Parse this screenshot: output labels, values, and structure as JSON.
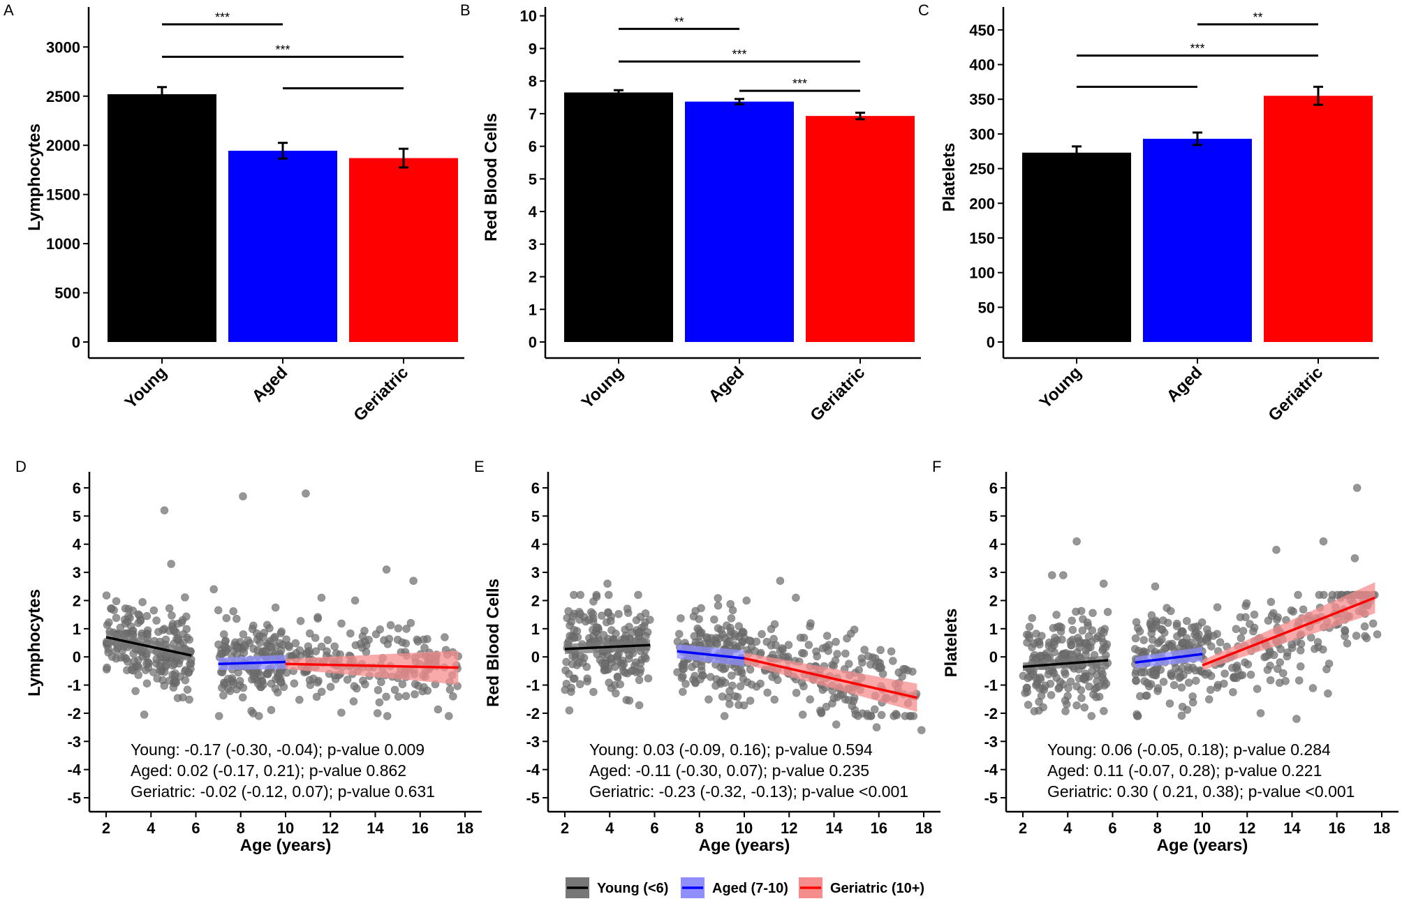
{
  "chart_data": [
    {
      "panel": "A",
      "type": "bar",
      "categories": [
        "Young",
        "Aged",
        "Geriatric"
      ],
      "values": [
        2520,
        1945,
        1870
      ],
      "errors": [
        72,
        80,
        95
      ],
      "colors": [
        "#000000",
        "#0000ff",
        "#ff0000"
      ],
      "ylabel": "Lymphocytes",
      "ylim": [
        0,
        3350
      ],
      "yticks": [
        0,
        500,
        1000,
        1500,
        2000,
        2500,
        3000
      ],
      "significance": [
        {
          "from": 0,
          "to": 1,
          "label": "***",
          "level": 3230
        },
        {
          "from": 0,
          "to": 2,
          "label": "***",
          "level": 2900
        },
        {
          "from": 1,
          "to": 2,
          "label": "",
          "level": 2580
        }
      ]
    },
    {
      "panel": "B",
      "type": "bar",
      "categories": [
        "Young",
        "Aged",
        "Geriatric"
      ],
      "values": [
        7.65,
        7.37,
        6.93
      ],
      "errors": [
        0.07,
        0.08,
        0.1
      ],
      "colors": [
        "#000000",
        "#0000ff",
        "#ff0000"
      ],
      "ylabel": "Red Blood Cells",
      "ylim": [
        0,
        10.1
      ],
      "yticks": [
        0,
        1,
        2,
        3,
        4,
        5,
        6,
        7,
        8,
        9,
        10
      ],
      "significance": [
        {
          "from": 0,
          "to": 1,
          "label": "**",
          "level": 9.6
        },
        {
          "from": 0,
          "to": 2,
          "label": "***",
          "level": 8.6
        },
        {
          "from": 1,
          "to": 2,
          "label": "***",
          "level": 7.7
        }
      ]
    },
    {
      "panel": "C",
      "type": "bar",
      "categories": [
        "Young",
        "Aged",
        "Geriatric"
      ],
      "values": [
        273,
        293,
        355
      ],
      "errors": [
        9,
        9,
        13
      ],
      "colors": [
        "#000000",
        "#0000ff",
        "#ff0000"
      ],
      "ylabel": "Platelets",
      "ylim": [
        0,
        475
      ],
      "yticks": [
        0,
        50,
        100,
        150,
        200,
        250,
        300,
        350,
        400,
        450
      ],
      "significance": [
        {
          "from": 1,
          "to": 2,
          "label": "**",
          "level": 458
        },
        {
          "from": 0,
          "to": 2,
          "label": "***",
          "level": 413
        },
        {
          "from": 0,
          "to": 1,
          "label": "",
          "level": 368
        }
      ]
    },
    {
      "panel": "D",
      "type": "scatter",
      "ylabel": "Lymphocytes",
      "xlabel": "Age (years)",
      "xlim": [
        1.9,
        18.2
      ],
      "ylim": [
        -5.4,
        6.4
      ],
      "xticks": [
        2,
        4,
        6,
        8,
        10,
        12,
        14,
        16,
        18
      ],
      "yticks": [
        -5,
        -4,
        -3,
        -2,
        -1,
        0,
        1,
        2,
        3,
        4,
        5,
        6
      ],
      "fits": [
        {
          "group": "young",
          "x": [
            2,
            5.8
          ],
          "y": [
            0.7,
            0.05
          ],
          "ci": [
            0.25,
            0.22
          ]
        },
        {
          "group": "aged",
          "x": [
            7,
            10
          ],
          "y": [
            -0.25,
            -0.18
          ],
          "ci": [
            0.22,
            0.25
          ]
        },
        {
          "group": "geriatric",
          "x": [
            10,
            17.7
          ],
          "y": [
            -0.25,
            -0.38
          ],
          "ci": [
            0.18,
            0.6
          ]
        }
      ],
      "points": {
        "young": 200,
        "aged": 160,
        "geriatric": 190,
        "trend_y": [
          0.7,
          0.05,
          -0.25,
          -0.18,
          -0.25,
          -0.38
        ],
        "spread": 0.7
      },
      "outliers": [
        [
          4.6,
          5.2
        ],
        [
          4.9,
          3.3
        ],
        [
          6.8,
          2.4
        ],
        [
          8.1,
          5.7
        ],
        [
          10.9,
          5.8
        ],
        [
          14.5,
          3.1
        ],
        [
          15.7,
          2.7
        ],
        [
          11.6,
          2.1
        ],
        [
          13.1,
          2.0
        ],
        [
          3.7,
          -2.05
        ],
        [
          14.1,
          -2.0
        ]
      ],
      "stats": [
        "Young: -0.17 (-0.30, -0.04); p-value 0.009",
        "Aged:  0.02 (-0.17,  0.21); p-value 0.862",
        "Geriatric: -0.02 (-0.12,  0.07); p-value 0.631"
      ]
    },
    {
      "panel": "E",
      "type": "scatter",
      "ylabel": "Red Blood Cells",
      "xlabel": "Age (years)",
      "xlim": [
        1.9,
        18.2
      ],
      "ylim": [
        -5.4,
        6.4
      ],
      "xticks": [
        2,
        4,
        6,
        8,
        10,
        12,
        14,
        16,
        18
      ],
      "yticks": [
        -5,
        -4,
        -3,
        -2,
        -1,
        0,
        1,
        2,
        3,
        4,
        5,
        6
      ],
      "fits": [
        {
          "group": "young",
          "x": [
            2,
            5.8
          ],
          "y": [
            0.28,
            0.42
          ],
          "ci": [
            0.18,
            0.2
          ]
        },
        {
          "group": "aged",
          "x": [
            7,
            10
          ],
          "y": [
            0.2,
            -0.05
          ],
          "ci": [
            0.25,
            0.28
          ]
        },
        {
          "group": "geriatric",
          "x": [
            10,
            17.7
          ],
          "y": [
            -0.05,
            -1.45
          ],
          "ci": [
            0.2,
            0.5
          ]
        }
      ],
      "points": {
        "young": 200,
        "aged": 160,
        "geriatric": 190,
        "trend_y": [
          0.28,
          0.42,
          0.2,
          -0.05,
          -0.05,
          -1.45
        ],
        "spread": 0.8
      },
      "outliers": [
        [
          3.9,
          2.6
        ],
        [
          11.6,
          2.7
        ],
        [
          12.3,
          2.1
        ],
        [
          10.1,
          2.0
        ],
        [
          14.1,
          -2.4
        ],
        [
          15.9,
          -2.5
        ],
        [
          17.9,
          -2.6
        ],
        [
          2.2,
          -1.9
        ]
      ],
      "stats": [
        "Young:  0.03 (-0.09,  0.16); p-value 0.594",
        "Aged: -0.11 (-0.30,  0.07); p-value 0.235",
        "Geriatric: -0.23 (-0.32, -0.13); p-value <0.001"
      ]
    },
    {
      "panel": "F",
      "type": "scatter",
      "ylabel": "Platelets",
      "xlabel": "Age (years)",
      "xlim": [
        1.9,
        18.2
      ],
      "ylim": [
        -5.4,
        6.4
      ],
      "xticks": [
        2,
        4,
        6,
        8,
        10,
        12,
        14,
        16,
        18
      ],
      "yticks": [
        -5,
        -4,
        -3,
        -2,
        -1,
        0,
        1,
        2,
        3,
        4,
        5,
        6
      ],
      "fits": [
        {
          "group": "young",
          "x": [
            2,
            5.8
          ],
          "y": [
            -0.35,
            -0.12
          ],
          "ci": [
            0.15,
            0.17
          ]
        },
        {
          "group": "aged",
          "x": [
            7,
            10
          ],
          "y": [
            -0.2,
            0.1
          ],
          "ci": [
            0.2,
            0.25
          ]
        },
        {
          "group": "geriatric",
          "x": [
            10,
            17.7
          ],
          "y": [
            -0.3,
            2.1
          ],
          "ci": [
            0.18,
            0.55
          ]
        }
      ],
      "points": {
        "young": 200,
        "aged": 160,
        "geriatric": 190,
        "trend_y": [
          -0.35,
          -0.12,
          -0.2,
          0.1,
          -0.3,
          2.1
        ],
        "spread": 0.8
      },
      "outliers": [
        [
          4.4,
          4.1
        ],
        [
          3.3,
          2.9
        ],
        [
          3.8,
          2.9
        ],
        [
          5.6,
          2.6
        ],
        [
          7.9,
          2.5
        ],
        [
          13.3,
          3.8
        ],
        [
          15.4,
          4.1
        ],
        [
          16.8,
          3.5
        ],
        [
          16.9,
          6.0
        ],
        [
          17.8,
          0.8
        ],
        [
          12.6,
          -2.0
        ],
        [
          14.2,
          -2.2
        ],
        [
          15.6,
          -1.3
        ]
      ],
      "stats": [
        "Young:  0.06 (-0.05,  0.18); p-value 0.284",
        "Aged:  0.11 (-0.07,  0.28); p-value 0.221",
        "Geriatric:  0.30 ( 0.21,  0.38); p-value <0.001"
      ]
    }
  ],
  "legend": [
    {
      "label": "Young (<6)",
      "color": "#000000",
      "fill": "#777777"
    },
    {
      "label": "Aged (7-10)",
      "color": "#0000ff",
      "fill": "#8f8fff"
    },
    {
      "label": "Geriatric (10+)",
      "color": "#ff0000",
      "fill": "#f58d8d"
    }
  ],
  "colors": {
    "young": "#000000",
    "aged": "#0000ff",
    "geriatric": "#ff0000",
    "point": "#6e6e6e"
  }
}
